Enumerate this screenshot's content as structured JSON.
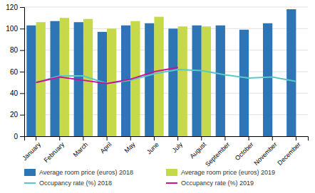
{
  "chart_data": {
    "type": "bar",
    "categories": [
      "January",
      "February",
      "March",
      "April",
      "May",
      "June",
      "July",
      "August",
      "September",
      "October",
      "November",
      "December"
    ],
    "series": [
      {
        "name": "Average room price (euros) 2018",
        "type": "bar",
        "color": "#2E75B6",
        "values": [
          103,
          107,
          106,
          97,
          103,
          105,
          100,
          103,
          103,
          99,
          105,
          118
        ]
      },
      {
        "name": "Average room price (euros) 2019",
        "type": "bar",
        "color": "#C5D94A",
        "values": [
          106,
          110,
          109,
          100,
          107,
          111,
          102,
          102,
          null,
          null,
          null,
          null
        ]
      },
      {
        "name": "Occupancy rate (%) 2018",
        "type": "line",
        "color": "#5BC8C8",
        "values": [
          50,
          56,
          56,
          49,
          52,
          58,
          62,
          61,
          57,
          54,
          55,
          51
        ]
      },
      {
        "name": "Occupancy rate (%) 2019",
        "type": "line",
        "color": "#CC1199",
        "values": [
          50,
          55,
          52,
          49,
          53,
          60,
          64,
          null,
          null,
          null,
          null,
          null
        ]
      }
    ],
    "ylim": [
      0,
      120
    ],
    "yticks": [
      0,
      20,
      40,
      60,
      80,
      100,
      120
    ],
    "grid": true,
    "legend": "bottom"
  }
}
